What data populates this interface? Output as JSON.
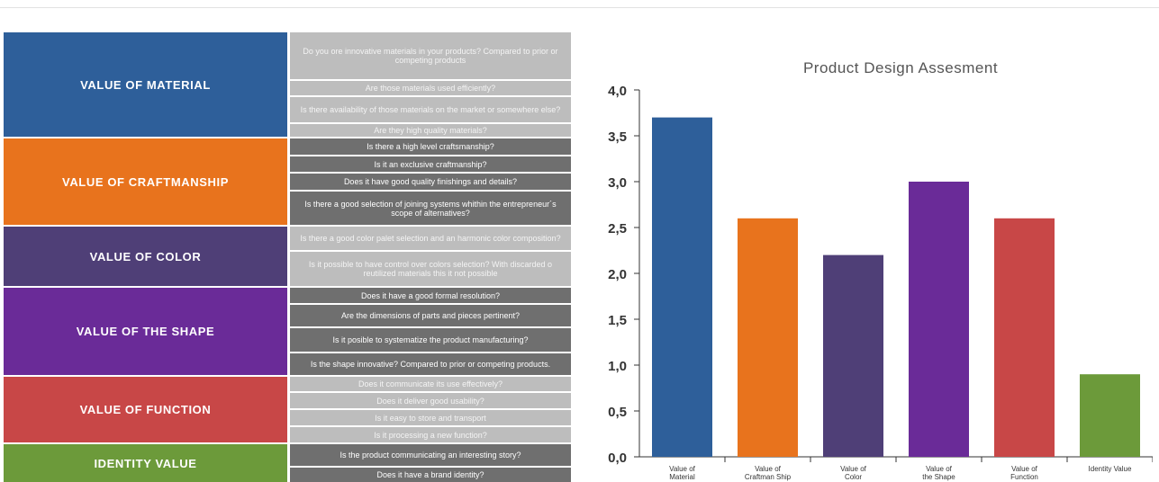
{
  "categories": [
    {
      "label": "VALUE OF MATERIAL",
      "color": "#2e5f9a"
    },
    {
      "label": "VALUE OF CRAFTMANSHIP",
      "color": "#e8731d"
    },
    {
      "label": "VALUE OF COLOR",
      "color": "#4f3f77"
    },
    {
      "label": "VALUE OF THE SHAPE",
      "color": "#6a2b98"
    },
    {
      "label": "VALUE OF FUNCTION",
      "color": "#c84747"
    },
    {
      "label": "IDENTITY VALUE",
      "color": "#6c9a3a"
    }
  ],
  "questions": [
    {
      "text": "Do you ore innovative materials in your products? Compared to prior or competing products",
      "shade": "light"
    },
    {
      "text": "Are those materials used efficiently?",
      "shade": "light"
    },
    {
      "text": "Is there availability of those materials on the market or somewhere else?",
      "shade": "light"
    },
    {
      "text": "Are they high quality materials?",
      "shade": "light"
    },
    {
      "text": "Is there a high level craftsmanship?",
      "shade": "dark"
    },
    {
      "text": "Is it an exclusive craftmanship?",
      "shade": "dark"
    },
    {
      "text": "Does it have good quality finishings and details?",
      "shade": "dark"
    },
    {
      "text": "Is there a good selection of joining systems whithin the entrepreneur´s scope of alternatives?",
      "shade": "dark"
    },
    {
      "text": "Is there a good color palet selection and an harmonic color composition?",
      "shade": "light"
    },
    {
      "text": "Is it possible to have control over colors selection? With discarded o reutilized materials this it not possible",
      "shade": "light"
    },
    {
      "text": "Does it have a good formal resolution?",
      "shade": "dark"
    },
    {
      "text": "Are the dimensions of parts and pieces pertinent?",
      "shade": "dark"
    },
    {
      "text": "Is it posible to systematize the product manufacturing?",
      "shade": "dark"
    },
    {
      "text": "Is the shape innovative? Compared to prior or competing products.",
      "shade": "dark"
    },
    {
      "text": "Does it communicate its use effectively?",
      "shade": "light"
    },
    {
      "text": "Does it deliver good usability?",
      "shade": "light"
    },
    {
      "text": "Is it easy to store and transport",
      "shade": "light"
    },
    {
      "text": "Is it processing a new function?",
      "shade": "light"
    },
    {
      "text": "Is the product communicating an interesting story?",
      "shade": "dark"
    },
    {
      "text": "Does it have a brand identity?",
      "shade": "dark"
    }
  ],
  "chart_data": {
    "type": "bar",
    "title": "Product Design Assesment",
    "categories": [
      "Value of Material",
      "Value of Craftman Ship",
      "Value of Color",
      "Value of the Shape",
      "Value of Function",
      "Identity Value"
    ],
    "values": [
      3.7,
      2.6,
      2.2,
      3.0,
      2.6,
      0.9
    ],
    "colors": [
      "#2e5f9a",
      "#e8731d",
      "#4f3f77",
      "#6a2b98",
      "#c84747",
      "#6c9a3a"
    ],
    "yticks": [
      "0,0",
      "0,5",
      "1,0",
      "1,5",
      "2,0",
      "2,5",
      "3,0",
      "3,5",
      "4,0"
    ],
    "ylim": [
      0,
      4
    ],
    "xlabel": "",
    "ylabel": "",
    "grid": false
  }
}
